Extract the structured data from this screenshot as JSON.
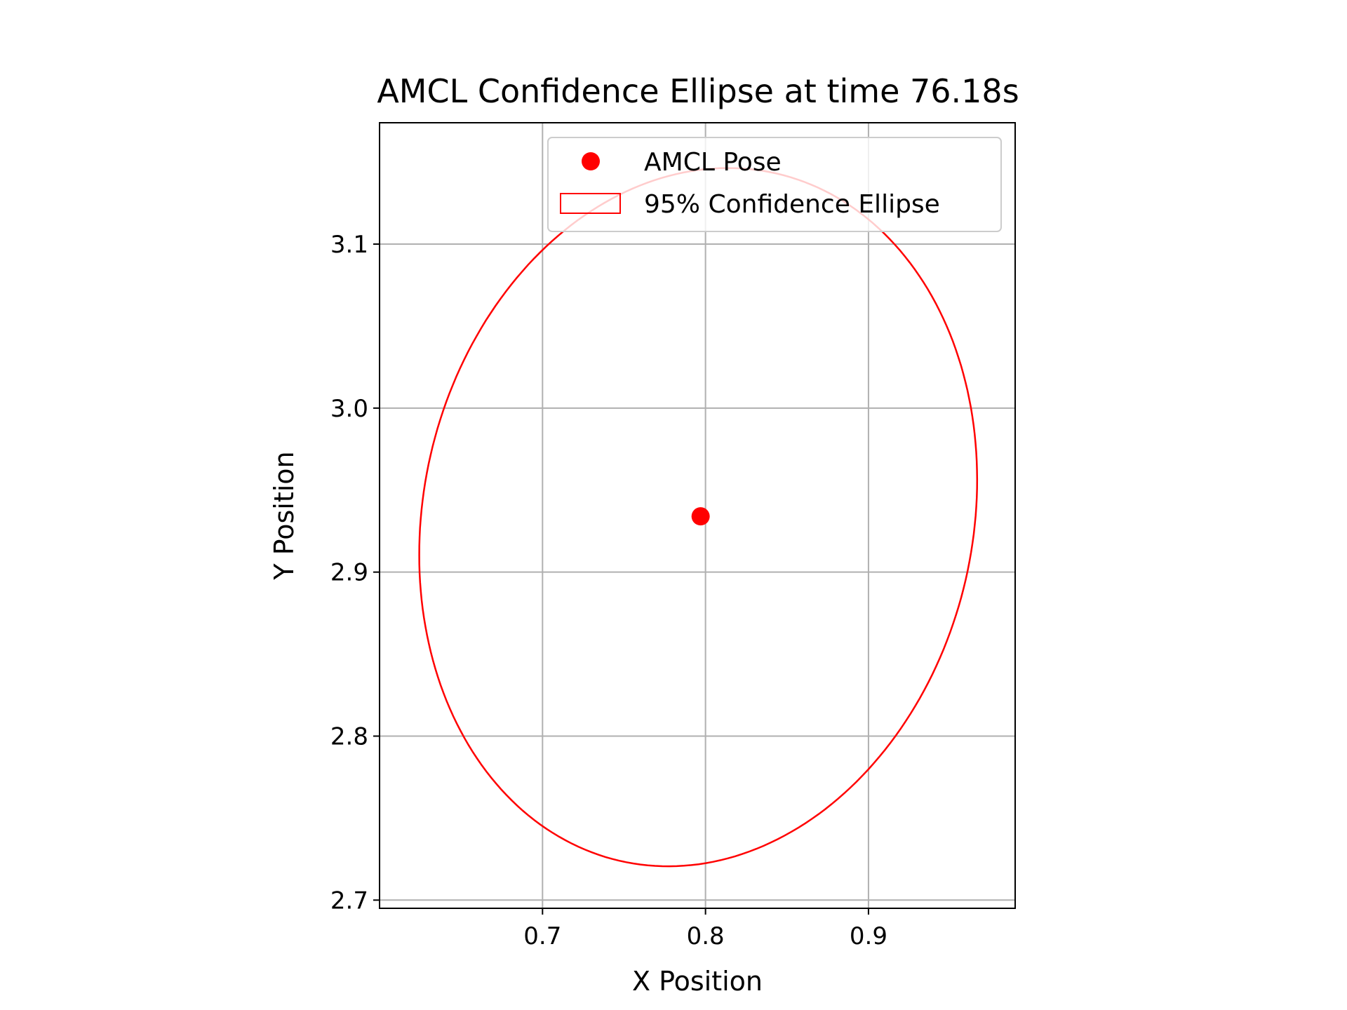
{
  "chart_data": {
    "type": "scatter",
    "title": "AMCL Confidence Ellipse at time 76.18s",
    "xlabel": "X Position",
    "ylabel": "Y Position",
    "xlim": [
      0.6,
      0.99
    ],
    "ylim": [
      2.695,
      3.174
    ],
    "xticks": [
      0.7,
      0.8,
      0.9
    ],
    "yticks": [
      2.7,
      2.8,
      2.9,
      3.0,
      3.1
    ],
    "xtick_labels": [
      "0.7",
      "0.8",
      "0.9"
    ],
    "ytick_labels": [
      "2.7",
      "2.8",
      "2.9",
      "3.0",
      "3.1"
    ],
    "grid": true,
    "legend_position": "upper-center",
    "series": [
      {
        "name": "AMCL Pose",
        "kind": "point",
        "color": "#ff0000",
        "x": [
          0.797
        ],
        "y": [
          2.934
        ]
      },
      {
        "name": "95% Confidence Ellipse",
        "kind": "ellipse",
        "color": "#ff0000",
        "center": [
          0.7955,
          2.9335
        ],
        "semi_major": 0.215,
        "semi_minor": 0.1685,
        "angle_deg": 77
      }
    ]
  }
}
